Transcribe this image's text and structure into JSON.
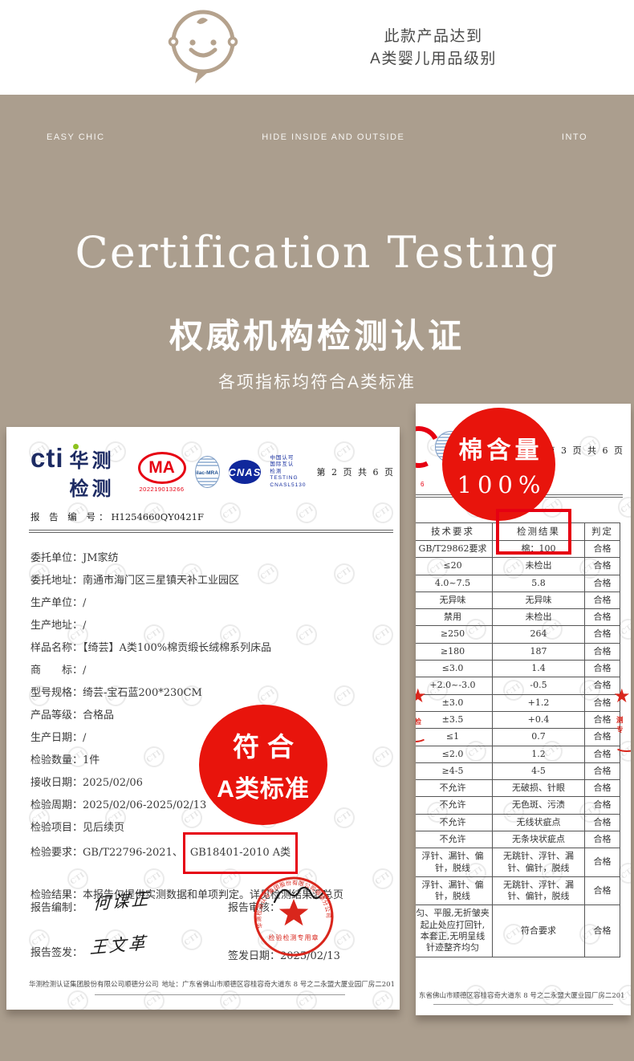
{
  "top": {
    "claim_line1": "此款产品达到",
    "claim_line2": "A类婴儿用品级别"
  },
  "banner": {
    "left": "EASY CHIC",
    "center": "HIDE INSIDE AND OUTSIDE",
    "right": "INTO"
  },
  "hero": {
    "title_en": "Certification Testing",
    "title_zh": "权威机构检测认证",
    "subtitle": "各项指标均符合A类标准"
  },
  "colors": {
    "background_beige": "#ab9e8e",
    "accent_red": "#e8140c",
    "brand_navy": "#1d2b63",
    "logo_green": "#8dc21f",
    "cnas_blue": "#10289c"
  },
  "watermark": "CTI",
  "cert_left": {
    "logo_word": "cti",
    "logo_cn": "华测检测",
    "ma_label": "MA",
    "ma_number": "202219013266",
    "ilac_label": "ilac-MRA",
    "cnas_label": "CNAS",
    "accreditation_lines": "中国认可\n国际互认\n检测\nTESTING\nCNASL5130",
    "page_info": "第 2 页 共 6 页",
    "report_no_label": "报 告 编 号：",
    "report_no": "H1254660QY0421F",
    "fields": [
      {
        "label": "委托单位：",
        "value": "JM家纺"
      },
      {
        "label": "委托地址：",
        "value": "南通市海门区三星镇天补工业园区"
      },
      {
        "label": "生产单位：",
        "value": "/"
      },
      {
        "label": "生产地址：",
        "value": "/"
      },
      {
        "label": "样品名称：",
        "value": "【绮芸】A类100%棉贡缎长绒棉系列床品"
      },
      {
        "label": "商　　标：",
        "value": "/"
      },
      {
        "label": "型号规格：",
        "value": "绮芸-宝石蓝200*230CM"
      },
      {
        "label": "产品等级：",
        "value": "合格品"
      },
      {
        "label": "生产日期：",
        "value": "/"
      },
      {
        "label": "检验数量：",
        "value": "1件"
      },
      {
        "label": "接收日期：",
        "value": "2025/02/06"
      },
      {
        "label": "检验周期：",
        "value": "2025/02/06-2025/02/13"
      },
      {
        "label": "检验项目：",
        "value": "见后续页"
      },
      {
        "label": "检验要求：",
        "value": "GB/T22796-2021、",
        "boxed": "GB18401-2010 A类"
      }
    ],
    "result_label": "检验结果：",
    "result_value": "本报告仅提供实测数据和单项判定。详见检测结果汇总页",
    "badge": {
      "line1": "符合",
      "line2": "A类标准"
    },
    "signatures": {
      "prepared_label": "报告编制：",
      "prepared_name": "何谋正",
      "reviewed_label": "报告审核：",
      "issued_label": "报告签发：",
      "issued_name": "王文革",
      "date_label": "签发日期：",
      "date_value": "2025/02/13"
    },
    "stamp": {
      "company": "华测检测认证集团股份有限公司顺德分公司",
      "type": "检验检测专用章"
    },
    "footer_company": "华测检测认证集团股份有限公司顺德分公司",
    "footer_address": "地址：广东省佛山市顺德区容桂容奇大道东 8 号之二永盟大厦业园厂房二201"
  },
  "cert_right": {
    "page_info": "第 3 页 共 6 页",
    "ma_number_fragment": "6",
    "badge": {
      "line1": "棉含量",
      "line2": "100%"
    },
    "table": {
      "headers": [
        "技术要求",
        "检测结果",
        "判定"
      ],
      "rows": [
        [
          "GB/T29862要求",
          "棉：100",
          "合格"
        ],
        [
          "≤20",
          "未检出",
          "合格"
        ],
        [
          "4.0~7.5",
          "5.8",
          "合格"
        ],
        [
          "无异味",
          "无异味",
          "合格"
        ],
        [
          "禁用",
          "未检出",
          "合格"
        ],
        [
          "≥250",
          "264",
          "合格"
        ],
        [
          "≥180",
          "187",
          "合格"
        ],
        [
          "≤3.0",
          "1.4",
          "合格"
        ],
        [
          "+2.0~-3.0",
          "-0.5",
          "合格"
        ],
        [
          "±3.0",
          "+1.2",
          "合格"
        ],
        [
          "±3.5",
          "+0.4",
          "合格"
        ],
        [
          "≤1",
          "0.7",
          "合格"
        ],
        [
          "≤2.0",
          "1.2",
          "合格"
        ],
        [
          "≥4-5",
          "4-5",
          "合格"
        ],
        [
          "不允许",
          "无破损、针眼",
          "合格"
        ],
        [
          "不允许",
          "无色斑、污渍",
          "合格"
        ],
        [
          "不允许",
          "无线状疵点",
          "合格"
        ],
        [
          "不允许",
          "无条块状疵点",
          "合格"
        ],
        [
          "浮针、漏针、偏针，脱线",
          "无跳针、浮针、漏针、偏针，脱线",
          "合格"
        ],
        [
          "浮针、漏针、偏针，脱线",
          "无跳针、浮针、漏针、偏针，脱线",
          "合格"
        ],
        [
          "匀、平服,无折皱夹 起止处应打回针, 本套正,无明呈线 针迹整齐均匀",
          "符合要求",
          "合格"
        ]
      ]
    },
    "stamp_fragments": {
      "left_text": "验检",
      "right_text": "测专"
    },
    "footer_address": "东省佛山市顺德区容桂容奇大道东 8 号之二永盟大厦业园厂房二201"
  }
}
